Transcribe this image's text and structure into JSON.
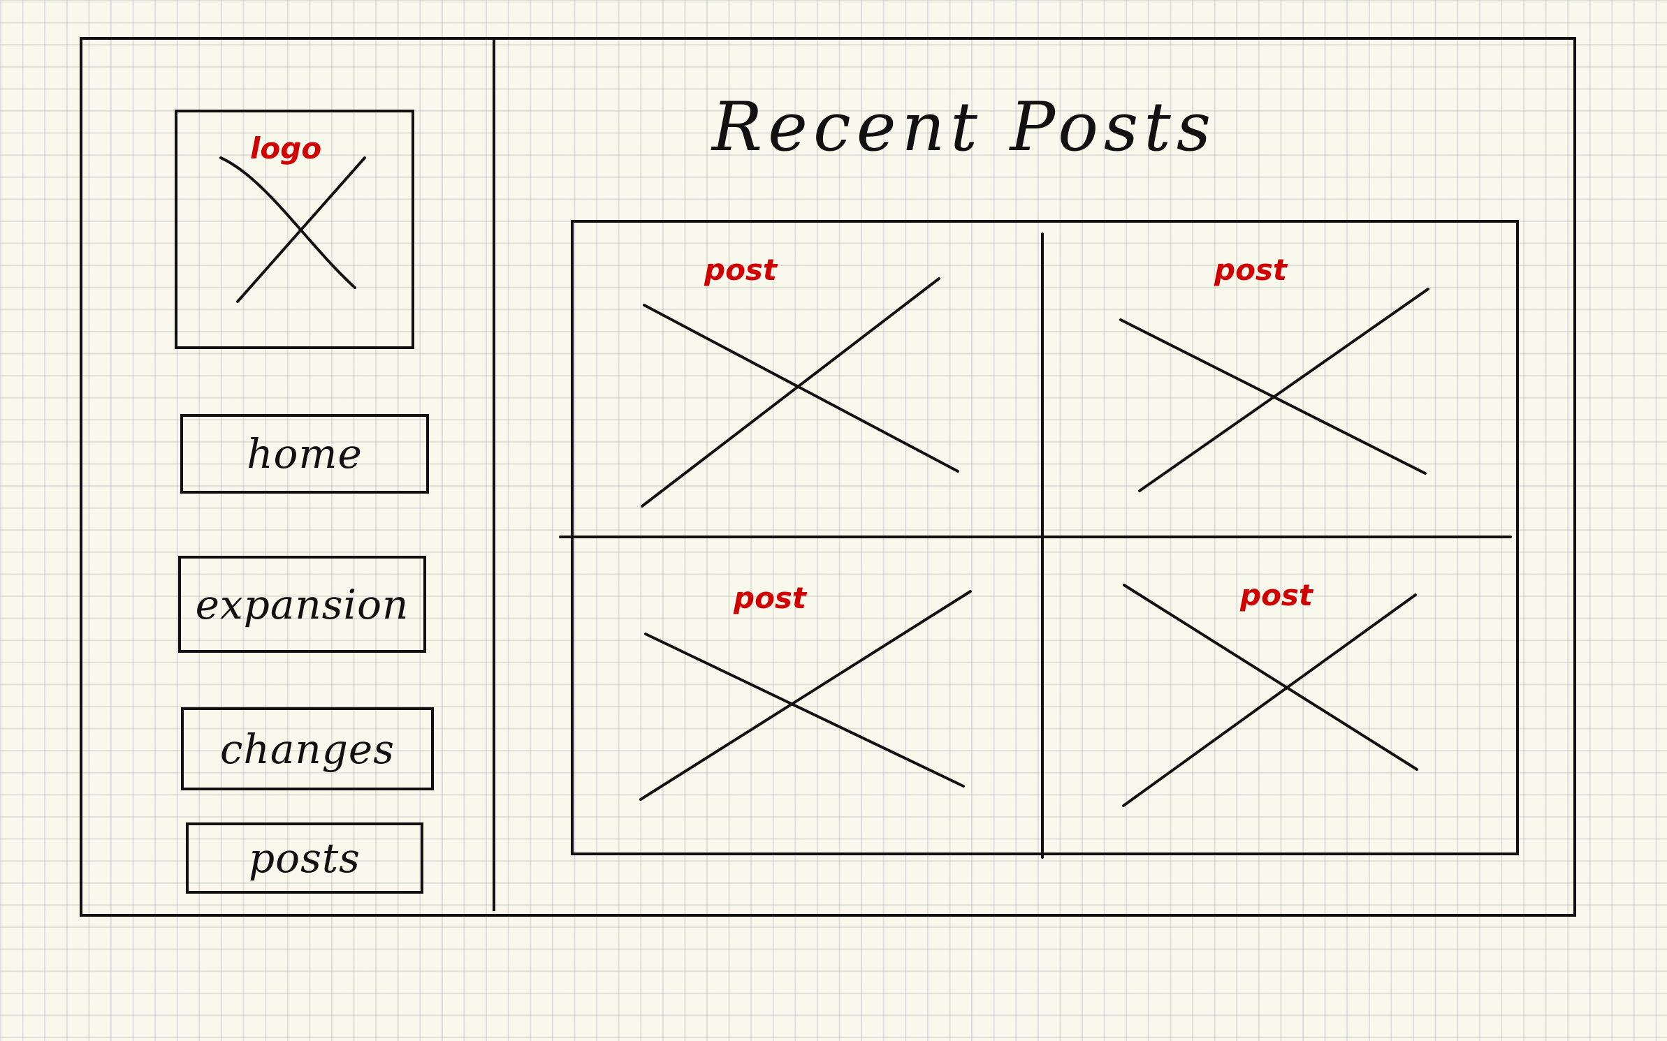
{
  "title": "Recent Posts",
  "logo": {
    "label": "logo"
  },
  "nav": {
    "home": "home",
    "expansion": "expansion",
    "changes": "changes",
    "posts": "posts"
  },
  "posts": [
    {
      "label": "post"
    },
    {
      "label": "post"
    },
    {
      "label": "post"
    },
    {
      "label": "post"
    }
  ],
  "colors": {
    "ink": "#111111",
    "annotation": "#d00000",
    "paper": "#f9f8ec"
  }
}
